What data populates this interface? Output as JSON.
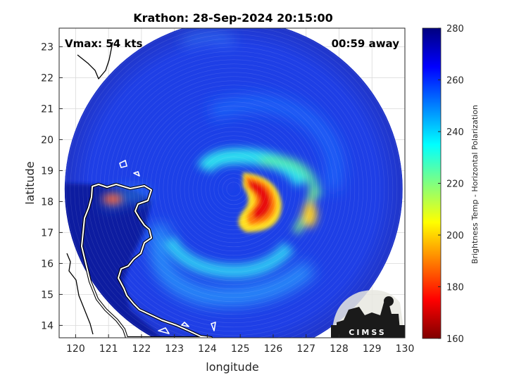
{
  "chart_data": {
    "type": "heatmap",
    "title": "Krathon: 28-Sep-2024 20:15:00",
    "xlabel": "longitude",
    "ylabel": "latitude",
    "xlim": [
      119.5,
      130
    ],
    "ylim": [
      13.6,
      23.6
    ],
    "xticks": [
      120,
      121,
      122,
      123,
      124,
      125,
      126,
      127,
      128,
      129,
      130
    ],
    "yticks": [
      14,
      15,
      16,
      17,
      18,
      19,
      20,
      21,
      22,
      23
    ],
    "grid": true,
    "annotations": {
      "left": "Vmax: 54 kts",
      "right": "00:59 away"
    },
    "colorbar": {
      "label": "Brightness Temp - Horizontal Polarization",
      "range": [
        160,
        280
      ],
      "ticks": [
        160,
        180,
        200,
        220,
        240,
        260,
        280
      ],
      "colors": [
        "#7f0000",
        "#ff0000",
        "#ff8000",
        "#ffff00",
        "#80ff80",
        "#00ffff",
        "#0080ff",
        "#0000ff",
        "#00007f"
      ]
    },
    "scan_center": {
      "lon": 124.8,
      "lat": 18.4
    },
    "storm_center": {
      "lon": 124.8,
      "lat": 18.6
    },
    "logo_text": "CIMSS",
    "coastline_color": "#ffffff"
  }
}
